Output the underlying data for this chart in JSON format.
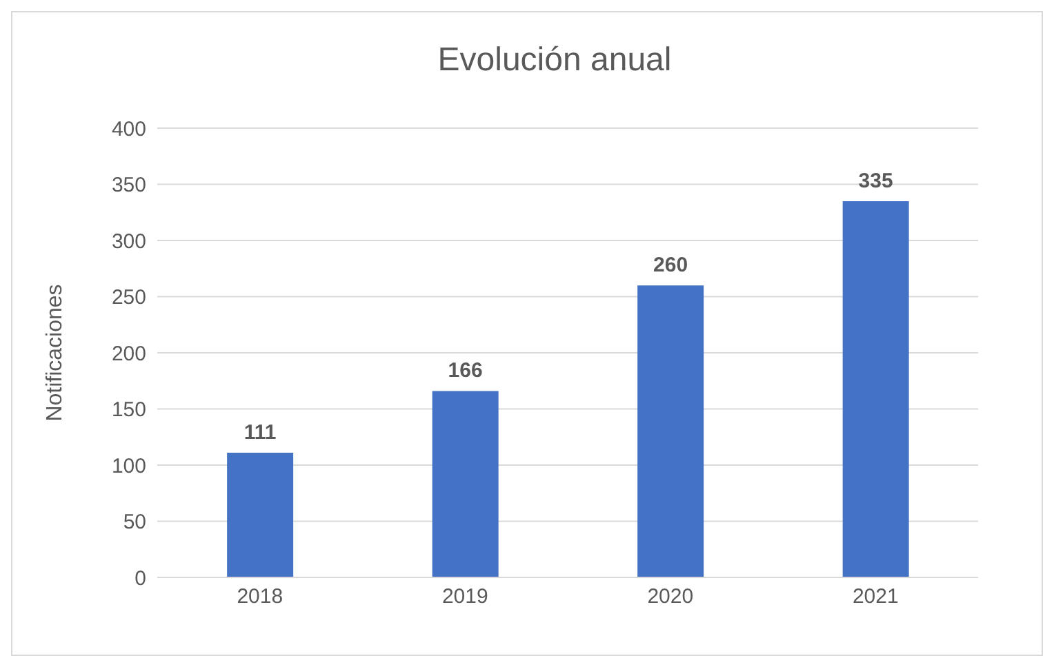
{
  "chart_data": {
    "type": "bar",
    "title": "Evolución anual",
    "ylabel": "Notificaciones",
    "categories": [
      "2018",
      "2019",
      "2020",
      "2021"
    ],
    "values": [
      111,
      166,
      260,
      335
    ],
    "color": "#4472c4",
    "ylim": [
      0,
      400
    ],
    "yticks": [
      0,
      50,
      100,
      150,
      200,
      250,
      300,
      350,
      400
    ],
    "grid": "y",
    "data_labels": true
  }
}
